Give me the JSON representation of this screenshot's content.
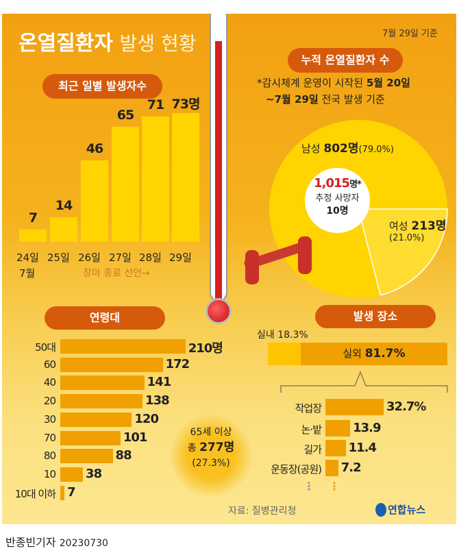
{
  "title": {
    "bold": "온열질환자",
    "light": "발생 현황"
  },
  "date_basis": "7월 29일 기준",
  "daily": {
    "pill": "최근 일별 발생자수",
    "month": "7월",
    "note": "장마 종료 선언→",
    "unit": "명"
  },
  "cumulative": {
    "pill": "누적 온열질환자 수",
    "note_line1_a": "*감시체계 운영이 시작된 ",
    "note_line1_b": "5월 20일",
    "note_line2_a": "~7월 29일",
    "note_line2_b": " 전국 발생 기준",
    "total": "1,015",
    "total_unit": "명*",
    "deaths_label": "추정 사망자",
    "deaths": "10명",
    "male_label": "남성 ",
    "male_value": "802명",
    "male_pct": "(79.0%)",
    "female_label": "여성 ",
    "female_value": "213명",
    "female_pct": "(21.0%)"
  },
  "age": {
    "pill": "연령대",
    "senior_l1": "65세 이상",
    "senior_l2a": "총 ",
    "senior_l2b": "277명",
    "senior_l3": "(27.3%)"
  },
  "place": {
    "pill": "발생 장소",
    "indoor": "실내 18.3%",
    "outdoor_label": "실외 ",
    "outdoor_value": "81.7%",
    "more": "⋮"
  },
  "source": "자료: 질병관리청",
  "logo": "연합뉴스",
  "footer": {
    "author": "반종빈기자",
    "date": "20230730"
  },
  "colors": {
    "accent": "#d65a0c",
    "bar_yellow": "#ffd400",
    "bar_orange": "#f0a000",
    "pie": "#ffd400",
    "indoor": "#ffc400"
  },
  "chart_data": [
    {
      "type": "bar",
      "title": "최근 일별 발생자수",
      "categories": [
        "24일",
        "25일",
        "26일",
        "27일",
        "28일",
        "29일"
      ],
      "values": [
        7,
        14,
        46,
        65,
        71,
        73
      ],
      "value_labels": [
        "7",
        "14",
        "46",
        "65",
        "71",
        "73명"
      ],
      "ylabel": "명"
    },
    {
      "type": "pie",
      "title": "누적 온열질환자 수",
      "categories": [
        "남성",
        "여성"
      ],
      "values": [
        802,
        213
      ],
      "percent": [
        79.0,
        21.0
      ]
    },
    {
      "type": "bar",
      "orientation": "horizontal",
      "title": "연령대",
      "categories": [
        "50대",
        "60",
        "40",
        "20",
        "30",
        "70",
        "80",
        "10",
        "10대 이하"
      ],
      "values": [
        210,
        172,
        141,
        138,
        120,
        101,
        88,
        38,
        7
      ],
      "value_labels": [
        "210명",
        "172",
        "141",
        "138",
        "120",
        "101",
        "88",
        "38",
        "7"
      ]
    },
    {
      "type": "bar",
      "orientation": "horizontal",
      "title": "발생 장소",
      "categories": [
        "작업장",
        "논·밭",
        "길가",
        "운동장(공원)"
      ],
      "values": [
        32.7,
        13.9,
        11.4,
        7.2
      ],
      "value_labels": [
        "32.7%",
        "13.9",
        "11.4",
        "7.2"
      ]
    }
  ]
}
